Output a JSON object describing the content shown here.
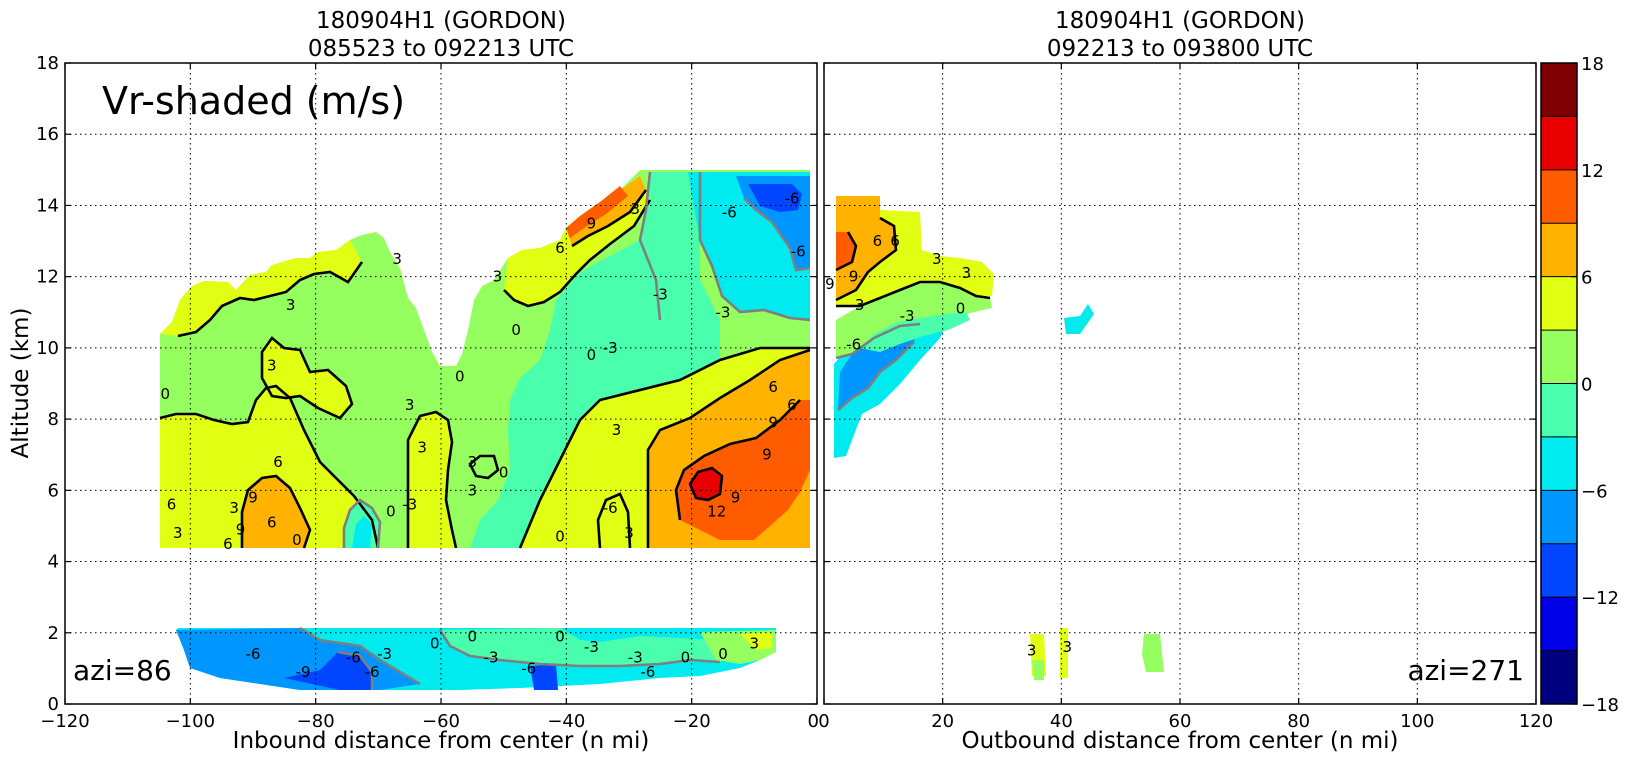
{
  "chart_data": [
    {
      "type": "heatmap",
      "panel": "inbound",
      "title_line1": "180904H1 (GORDON)",
      "title_line2": "085523 to 092213 UTC",
      "xlabel": "Inbound distance from center (n mi)",
      "ylabel": "Altitude (km)",
      "xlim": [
        -120,
        0
      ],
      "ylim": [
        0,
        18
      ],
      "xticks": [
        "−120",
        "−100",
        "−80",
        "−60",
        "−40",
        "−20",
        "0"
      ],
      "xtick_values": [
        -120,
        -100,
        -80,
        -60,
        -40,
        -20,
        0
      ],
      "yticks": [
        "0",
        "2",
        "4",
        "6",
        "8",
        "10",
        "12",
        "14",
        "16",
        "18"
      ],
      "ytick_values": [
        0,
        2,
        4,
        6,
        8,
        10,
        12,
        14,
        16,
        18
      ],
      "grid": true,
      "annotation": "Vr-shaded (m/s)",
      "azimuth_label": "azi=86",
      "contour_labels": [
        {
          "x": -104,
          "y": 8.7,
          "text": "0"
        },
        {
          "x": -84,
          "y": 11.2,
          "text": "3"
        },
        {
          "x": -87,
          "y": 9.5,
          "text": "3"
        },
        {
          "x": -67,
          "y": 12.5,
          "text": "3"
        },
        {
          "x": -65,
          "y": 8.4,
          "text": "3"
        },
        {
          "x": -57,
          "y": 9.2,
          "text": "0"
        },
        {
          "x": -48,
          "y": 10.5,
          "text": "0"
        },
        {
          "x": -36,
          "y": 9.8,
          "text": "0"
        },
        {
          "x": -33,
          "y": 10.0,
          "text": "-3"
        },
        {
          "x": -51,
          "y": 12.0,
          "text": "3"
        },
        {
          "x": -41,
          "y": 12.8,
          "text": "6"
        },
        {
          "x": -36,
          "y": 13.5,
          "text": "9"
        },
        {
          "x": -29,
          "y": 13.9,
          "text": "3"
        },
        {
          "x": -25,
          "y": 11.5,
          "text": "-3"
        },
        {
          "x": -15,
          "y": 11.0,
          "text": "-3"
        },
        {
          "x": -14,
          "y": 13.8,
          "text": "-6"
        },
        {
          "x": -4,
          "y": 14.2,
          "text": "-6"
        },
        {
          "x": -3,
          "y": 12.7,
          "text": "-6"
        },
        {
          "x": -63,
          "y": 7.2,
          "text": "3"
        },
        {
          "x": -55,
          "y": 6.8,
          "text": "3"
        },
        {
          "x": -50,
          "y": 6.5,
          "text": "0"
        },
        {
          "x": -55,
          "y": 6.0,
          "text": "3"
        },
        {
          "x": -65,
          "y": 5.6,
          "text": "-3"
        },
        {
          "x": -68,
          "y": 5.4,
          "text": "0"
        },
        {
          "x": -32,
          "y": 7.7,
          "text": "3"
        },
        {
          "x": -33,
          "y": 5.5,
          "text": "-6"
        },
        {
          "x": -30,
          "y": 4.8,
          "text": "3"
        },
        {
          "x": -41,
          "y": 4.7,
          "text": "0"
        },
        {
          "x": -86,
          "y": 6.8,
          "text": "6"
        },
        {
          "x": -90,
          "y": 5.8,
          "text": "9"
        },
        {
          "x": -87,
          "y": 5.1,
          "text": "6"
        },
        {
          "x": -92,
          "y": 4.9,
          "text": "9"
        },
        {
          "x": -94,
          "y": 4.5,
          "text": "6"
        },
        {
          "x": -93,
          "y": 5.5,
          "text": "3"
        },
        {
          "x": -103,
          "y": 5.6,
          "text": "6"
        },
        {
          "x": -102,
          "y": 4.8,
          "text": "3"
        },
        {
          "x": -83,
          "y": 4.6,
          "text": "0"
        },
        {
          "x": -7,
          "y": 8.9,
          "text": "6"
        },
        {
          "x": -4,
          "y": 8.4,
          "text": "6"
        },
        {
          "x": -7,
          "y": 7.9,
          "text": "9"
        },
        {
          "x": -8,
          "y": 7.0,
          "text": "9"
        },
        {
          "x": -13,
          "y": 5.8,
          "text": "9"
        },
        {
          "x": -16,
          "y": 5.4,
          "text": "12"
        },
        {
          "x": -90,
          "y": 1.4,
          "text": "-6"
        },
        {
          "x": -82,
          "y": 0.9,
          "text": "-9"
        },
        {
          "x": -74,
          "y": 1.3,
          "text": "-6"
        },
        {
          "x": -71,
          "y": 0.9,
          "text": "-6"
        },
        {
          "x": -69,
          "y": 1.4,
          "text": "-3"
        },
        {
          "x": -61,
          "y": 1.7,
          "text": "0"
        },
        {
          "x": -55,
          "y": 1.9,
          "text": "0"
        },
        {
          "x": -52,
          "y": 1.3,
          "text": "-3"
        },
        {
          "x": -46,
          "y": 1.0,
          "text": "-6"
        },
        {
          "x": -41,
          "y": 1.9,
          "text": "0"
        },
        {
          "x": -36,
          "y": 1.6,
          "text": "-3"
        },
        {
          "x": -29,
          "y": 1.3,
          "text": "-3"
        },
        {
          "x": -27,
          "y": 0.9,
          "text": "-6"
        },
        {
          "x": -21,
          "y": 1.3,
          "text": "0"
        },
        {
          "x": -15,
          "y": 1.4,
          "text": "0"
        },
        {
          "x": -10,
          "y": 1.7,
          "text": "3"
        }
      ]
    },
    {
      "type": "heatmap",
      "panel": "outbound",
      "title_line1": "180904H1 (GORDON)",
      "title_line2": "092213 to 093800 UTC",
      "xlabel": "Outbound distance from center (n mi)",
      "ylabel": "",
      "xlim": [
        0,
        120
      ],
      "ylim": [
        0,
        18
      ],
      "xticks": [
        "0",
        "20",
        "40",
        "60",
        "80",
        "100",
        "120"
      ],
      "xtick_values": [
        0,
        20,
        40,
        60,
        80,
        100,
        120
      ],
      "grid": true,
      "azimuth_label": "azi=271",
      "contour_labels": [
        {
          "x": 9,
          "y": 13.0,
          "text": "6"
        },
        {
          "x": 12,
          "y": 13.0,
          "text": "6"
        },
        {
          "x": 19,
          "y": 12.5,
          "text": "3"
        },
        {
          "x": 24,
          "y": 12.1,
          "text": "3"
        },
        {
          "x": 1,
          "y": 11.8,
          "text": "9"
        },
        {
          "x": 5,
          "y": 12.0,
          "text": "9"
        },
        {
          "x": 6,
          "y": 11.2,
          "text": "3"
        },
        {
          "x": 14,
          "y": 10.9,
          "text": "-3"
        },
        {
          "x": 23,
          "y": 11.1,
          "text": "0"
        },
        {
          "x": 5,
          "y": 10.1,
          "text": "-6"
        },
        {
          "x": 35,
          "y": 1.5,
          "text": "3"
        },
        {
          "x": 41,
          "y": 1.6,
          "text": "3"
        }
      ]
    }
  ],
  "colorbar": {
    "levels": [
      -18,
      -15,
      -12,
      -9,
      -6,
      -3,
      0,
      3,
      6,
      9,
      12,
      15,
      18
    ],
    "colors": [
      "#00007f",
      "#0000e6",
      "#0045ff",
      "#0096ff",
      "#00ebf0",
      "#49ffad",
      "#96ff60",
      "#e0ff12",
      "#ffb300",
      "#ff5c00",
      "#e80000",
      "#7f0000"
    ],
    "tick_labels": [
      "−18",
      "−12",
      "−6",
      "0",
      "6",
      "12",
      "18"
    ],
    "tick_values": [
      -18,
      -12,
      -6,
      0,
      6,
      12,
      18
    ]
  }
}
